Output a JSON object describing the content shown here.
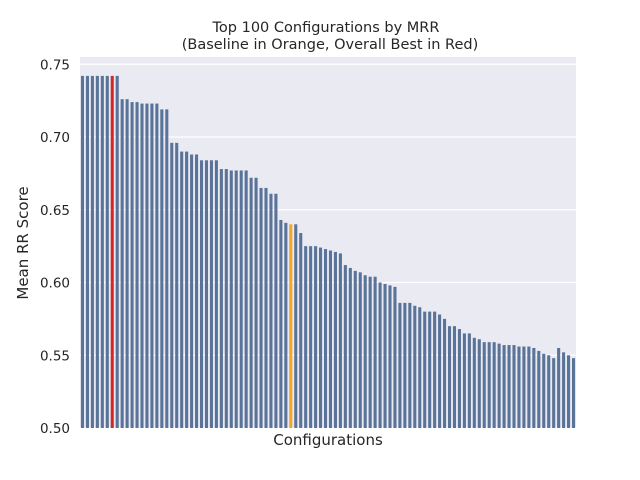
{
  "chart_data": {
    "type": "bar",
    "title": "Top 100 Configurations by MRR",
    "subtitle": "(Baseline in Orange, Overall Best in Red)",
    "xlabel": "Configurations",
    "ylabel": "Mean RR Score",
    "ylim": [
      0.5,
      0.755
    ],
    "yticks": [
      "0.50",
      "0.55",
      "0.60",
      "0.65",
      "0.70",
      "0.75"
    ],
    "grid": true,
    "colors": {
      "default": "#5a7398",
      "baseline": "#f5a623",
      "best": "#d62728",
      "background": "#eaeaf2",
      "grid": "#ffffff"
    },
    "baseline_index": 42,
    "best_index": 6,
    "values": [
      0.742,
      0.742,
      0.742,
      0.742,
      0.742,
      0.742,
      0.742,
      0.742,
      0.726,
      0.726,
      0.724,
      0.724,
      0.723,
      0.723,
      0.723,
      0.723,
      0.719,
      0.719,
      0.696,
      0.696,
      0.69,
      0.69,
      0.688,
      0.688,
      0.684,
      0.684,
      0.684,
      0.684,
      0.678,
      0.678,
      0.677,
      0.677,
      0.677,
      0.677,
      0.672,
      0.672,
      0.665,
      0.665,
      0.661,
      0.661,
      0.643,
      0.641,
      0.64,
      0.64,
      0.634,
      0.625,
      0.625,
      0.625,
      0.624,
      0.623,
      0.622,
      0.621,
      0.62,
      0.612,
      0.61,
      0.608,
      0.607,
      0.605,
      0.604,
      0.604,
      0.6,
      0.599,
      0.598,
      0.597,
      0.586,
      0.586,
      0.586,
      0.584,
      0.583,
      0.58,
      0.58,
      0.58,
      0.578,
      0.575,
      0.57,
      0.57,
      0.568,
      0.565,
      0.565,
      0.562,
      0.561,
      0.559,
      0.559,
      0.559,
      0.558,
      0.557,
      0.557,
      0.557,
      0.556,
      0.556,
      0.556,
      0.555,
      0.553,
      0.551,
      0.55,
      0.548,
      0.555,
      0.552,
      0.55,
      0.548
    ]
  }
}
